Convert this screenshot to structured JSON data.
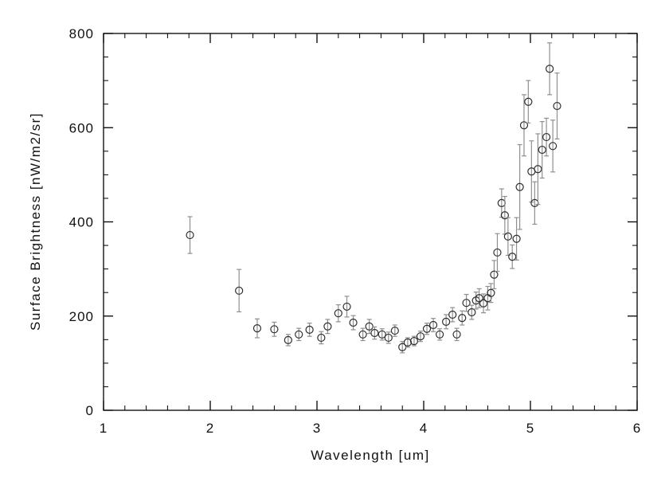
{
  "chart_data": {
    "type": "scatter",
    "title": "",
    "xlabel": "Wavelength [um]",
    "ylabel": "Surface Brightness [nW/m2/sr]",
    "xlim": [
      1,
      6
    ],
    "ylim": [
      0,
      800
    ],
    "x_ticks": [
      1,
      2,
      3,
      4,
      5,
      6
    ],
    "y_ticks": [
      0,
      200,
      400,
      600,
      800
    ],
    "x_minor_step": 0.2,
    "y_minor_step": 50,
    "grid": false,
    "legend": "none",
    "marker": "open-circle",
    "error_bars": true,
    "style": {
      "axis_color": "#000000",
      "marker_color": "#2e2e2e",
      "error_color": "#8f8f8f",
      "background": "#ffffff"
    },
    "points": [
      {
        "x": 1.81,
        "y": 372,
        "err": 39
      },
      {
        "x": 2.27,
        "y": 254,
        "err": 45
      },
      {
        "x": 2.44,
        "y": 174,
        "err": 20
      },
      {
        "x": 2.6,
        "y": 172,
        "err": 15
      },
      {
        "x": 2.73,
        "y": 149,
        "err": 12
      },
      {
        "x": 2.83,
        "y": 161,
        "err": 13
      },
      {
        "x": 2.93,
        "y": 171,
        "err": 14
      },
      {
        "x": 3.04,
        "y": 154,
        "err": 13
      },
      {
        "x": 3.1,
        "y": 178,
        "err": 15
      },
      {
        "x": 3.2,
        "y": 206,
        "err": 18
      },
      {
        "x": 3.28,
        "y": 220,
        "err": 22
      },
      {
        "x": 3.34,
        "y": 186,
        "err": 15
      },
      {
        "x": 3.43,
        "y": 161,
        "err": 13
      },
      {
        "x": 3.49,
        "y": 178,
        "err": 15
      },
      {
        "x": 3.54,
        "y": 164,
        "err": 13
      },
      {
        "x": 3.61,
        "y": 161,
        "err": 12
      },
      {
        "x": 3.67,
        "y": 154,
        "err": 12
      },
      {
        "x": 3.73,
        "y": 169,
        "err": 12
      },
      {
        "x": 3.8,
        "y": 134,
        "err": 12
      },
      {
        "x": 3.85,
        "y": 144,
        "err": 10
      },
      {
        "x": 3.91,
        "y": 147,
        "err": 10
      },
      {
        "x": 3.97,
        "y": 157,
        "err": 11
      },
      {
        "x": 4.03,
        "y": 173,
        "err": 12
      },
      {
        "x": 4.09,
        "y": 181,
        "err": 14
      },
      {
        "x": 4.15,
        "y": 161,
        "err": 12
      },
      {
        "x": 4.21,
        "y": 188,
        "err": 15
      },
      {
        "x": 4.27,
        "y": 203,
        "err": 15
      },
      {
        "x": 4.31,
        "y": 161,
        "err": 13
      },
      {
        "x": 4.36,
        "y": 196,
        "err": 15
      },
      {
        "x": 4.4,
        "y": 228,
        "err": 18
      },
      {
        "x": 4.45,
        "y": 208,
        "err": 15
      },
      {
        "x": 4.49,
        "y": 233,
        "err": 18
      },
      {
        "x": 4.52,
        "y": 238,
        "err": 20
      },
      {
        "x": 4.56,
        "y": 227,
        "err": 20
      },
      {
        "x": 4.6,
        "y": 238,
        "err": 25
      },
      {
        "x": 4.63,
        "y": 249,
        "err": 20
      },
      {
        "x": 4.66,
        "y": 288,
        "err": 30
      },
      {
        "x": 4.69,
        "y": 335,
        "err": 40
      },
      {
        "x": 4.73,
        "y": 440,
        "err": 30
      },
      {
        "x": 4.76,
        "y": 414,
        "err": 40
      },
      {
        "x": 4.79,
        "y": 369,
        "err": 40
      },
      {
        "x": 4.83,
        "y": 326,
        "err": 25
      },
      {
        "x": 4.87,
        "y": 364,
        "err": 45
      },
      {
        "x": 4.9,
        "y": 474,
        "err": 90
      },
      {
        "x": 4.94,
        "y": 605,
        "err": 65
      },
      {
        "x": 4.98,
        "y": 655,
        "err": 45
      },
      {
        "x": 5.01,
        "y": 507,
        "err": 65
      },
      {
        "x": 5.04,
        "y": 440,
        "err": 45
      },
      {
        "x": 5.07,
        "y": 512,
        "err": 75
      },
      {
        "x": 5.11,
        "y": 553,
        "err": 60
      },
      {
        "x": 5.15,
        "y": 580,
        "err": 40
      },
      {
        "x": 5.18,
        "y": 725,
        "err": 55
      },
      {
        "x": 5.21,
        "y": 561,
        "err": 55
      },
      {
        "x": 5.25,
        "y": 646,
        "err": 70
      }
    ]
  }
}
